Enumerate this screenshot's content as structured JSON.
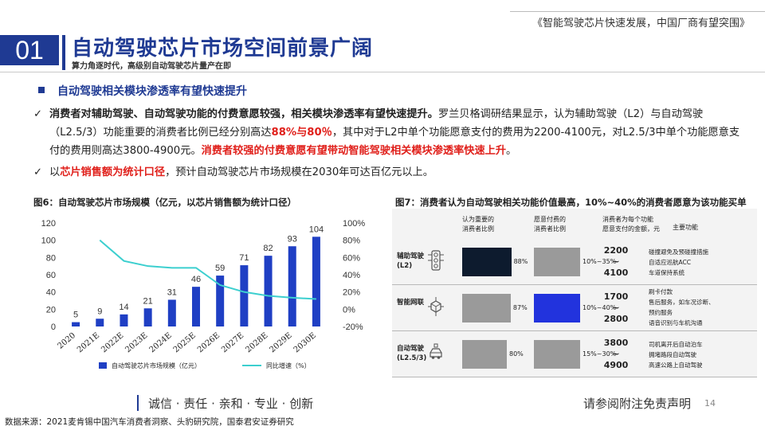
{
  "header": {
    "report_title": "《智能驾驶芯片快速发展，中国厂商有望突围》",
    "section_number": "01",
    "title": "自动驾驶芯片市场空间前景广阔",
    "subtitle": "算力角逐时代，高级别自动驾驶芯片量产在即"
  },
  "bullet": {
    "heading": "自动驾驶相关模块渗透率有望快速提升",
    "check_icon": "✓",
    "p1_bold": "消费者对辅助驾驶、自动驾驶功能的付费意愿较强，相关模块渗透率有望快速提升。",
    "p1_text_a": "罗兰贝格调研结果显示，认为辅助驾驶（L2）与自动驾驶（L2.5/3）功能重要的消费者比例已经分别高达",
    "p1_red_a": "88%与80％",
    "p1_text_b": "，其中对于L2中单个功能愿意支付的费用为2200-4100元，对L2.5/3中单个功能愿意支付的费用则高达3800-4900元。",
    "p1_red_b": "消费者较强的付费意愿有望带动智能驾驶相关模块渗透率快速上升",
    "p1_end": "。",
    "p2_text_a": "以",
    "p2_red": "芯片销售额为统计口径",
    "p2_text_b": "，预计自动驾驶芯片市场规模在2030年可达百亿元以上。"
  },
  "figure6": {
    "title": "图6：自动驾驶芯片市场规模（亿元，以芯片销售额为统计口径）"
  },
  "chart_data": {
    "type": "bar",
    "categories": [
      "2020",
      "2021E",
      "2022E",
      "2023E",
      "2024E",
      "2025E",
      "2026E",
      "2027E",
      "2028E",
      "2029E",
      "2030E"
    ],
    "series": [
      {
        "name": "自动驾驶芯片市场规模（亿元）",
        "type": "bar",
        "axis": "left",
        "color": "#1f3fc4",
        "values": [
          5,
          9,
          14,
          21,
          31,
          46,
          59,
          71,
          82,
          93,
          104
        ]
      },
      {
        "name": "同比增速（%）",
        "type": "line",
        "axis": "right",
        "color": "#3ccfcf",
        "values": [
          null,
          80,
          56,
          50,
          48,
          48,
          28,
          20,
          15.5,
          13.4,
          11.8
        ]
      }
    ],
    "y_left": {
      "lim": [
        0,
        120
      ],
      "ticks": [
        "0",
        "20",
        "40",
        "60",
        "80",
        "100",
        "120"
      ]
    },
    "y_right": {
      "lim": [
        -20,
        100
      ],
      "ticks": [
        "-20%",
        "0%",
        "20%",
        "40%",
        "60%",
        "80%",
        "100%"
      ]
    },
    "data_labels": [
      "5",
      "9",
      "14",
      "21",
      "31",
      "46",
      "59",
      "71",
      "82",
      "93",
      "104"
    ],
    "legend_position": "bottom",
    "grid": false
  },
  "figure7": {
    "title": "图7：消费者认为自动驾驶相关功能价值最高，10%~40%的消费者愿意为该功能买单",
    "col_headers": [
      "认为重要的\n消费者比例",
      "愿意付费的\n消费者比例",
      "消费者为每个功能\n愿意支付的金额，元",
      "主要功能"
    ],
    "rows": [
      {
        "label": "辅助驾驶\n(L2)",
        "icon": "traffic-light-icon",
        "important_pct": 88,
        "important_label": "88%",
        "important_color": "#0d1b2e",
        "pay_label": "10%~35%",
        "pay_color": "#9a9a9a",
        "amount_low": "2200",
        "amount_sep": "~",
        "amount_high": "4100",
        "functions": [
          "碰撞避免及预碰撞措施",
          "自适应巡航ACC",
          "车道保持系统"
        ]
      },
      {
        "label": "智能网联",
        "icon": "network-cube-icon",
        "important_pct": 87,
        "important_label": "87%",
        "important_color": "#9a9a9a",
        "pay_label": "10%~40%",
        "pay_color": "#2233dd",
        "amount_low": "1700",
        "amount_sep": "~",
        "amount_high": "2800",
        "functions": [
          "刷卡付款",
          "售后服务，如车况诊断、",
          "预约服务",
          "语音识别与车机沟通"
        ]
      },
      {
        "label": "自动驾驶\n(L2.5/3)",
        "icon": "autonomous-car-icon",
        "important_pct": 80,
        "important_label": "80%",
        "important_color": "#9a9a9a",
        "pay_label": "15%~30%",
        "pay_color": "#9a9a9a",
        "amount_low": "3800",
        "amount_sep": "~",
        "amount_high": "4900",
        "functions": [
          "司机离开后自动泊车",
          "拥堵路段自动驾驶",
          "高速公路上自动驾驶"
        ]
      }
    ]
  },
  "footer": {
    "slogan": "诚信 · 责任 · 亲和 · 专业 · 创新",
    "disclaimer": "请参阅附注免责声明",
    "page": "14",
    "source": "数据来源：2021麦肯锡中国汽车消费者洞察、头豹研究院，国泰君安证券研究"
  },
  "colors": {
    "brand": "#1f3a93",
    "highlight": "#e0201b"
  }
}
